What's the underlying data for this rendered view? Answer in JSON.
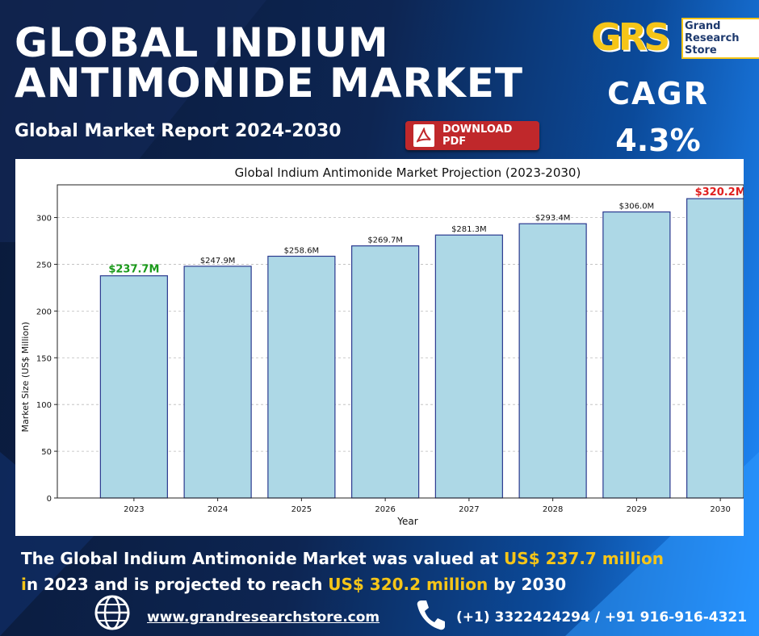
{
  "header": {
    "title_line1": "GLOBAL INDIUM",
    "title_line2": "ANTIMONIDE MARKET",
    "subtitle": "Global Market Report 2024-2030",
    "download_label": "DOWNLOAD PDF"
  },
  "logo": {
    "mark": "GRS",
    "line1": "Grand",
    "line2": "Research",
    "line3": "Store"
  },
  "cagr": {
    "label": "CAGR",
    "value": "4.3%"
  },
  "chart_data": {
    "type": "bar",
    "title": "Global Indium Antimonide Market Projection (2023-2030)",
    "xlabel": "Year",
    "ylabel": "Market Size (US$ Million)",
    "categories": [
      "2023",
      "2024",
      "2025",
      "2026",
      "2027",
      "2028",
      "2029",
      "2030"
    ],
    "values": [
      237.7,
      247.9,
      258.6,
      269.7,
      281.3,
      293.4,
      306.0,
      320.2
    ],
    "data_labels": [
      "$237.7M",
      "$247.9M",
      "$258.6M",
      "$269.7M",
      "$281.3M",
      "$293.4M",
      "$306.0M",
      "$320.2M"
    ],
    "ylim": [
      0,
      335
    ],
    "yticks": [
      0,
      50,
      100,
      150,
      200,
      250,
      300
    ],
    "grid": true,
    "bar_color": "#add8e6",
    "bar_edge_color": "#2b3a8f",
    "highlight_first_color": "#1a9a1a",
    "highlight_last_color": "#e02020"
  },
  "summary": {
    "part1": "The Global Indium Antimonide Market was valued at ",
    "value_2023": "US$ 237.7 million",
    "part2_first_letter": "i",
    "part2": "n 2023 and is projected to reach ",
    "value_2030": "US$ 320.2 million",
    "part3": " by 2030"
  },
  "footer": {
    "website": "www.grandresearchstore.com",
    "phone": "(+1) 3322424294 / +91 916-916-4321"
  },
  "colors": {
    "highlight": "#f5c518",
    "download_button": "#c0282b",
    "background_dark": "#0a1a3a",
    "background_light": "#1f8cff"
  }
}
